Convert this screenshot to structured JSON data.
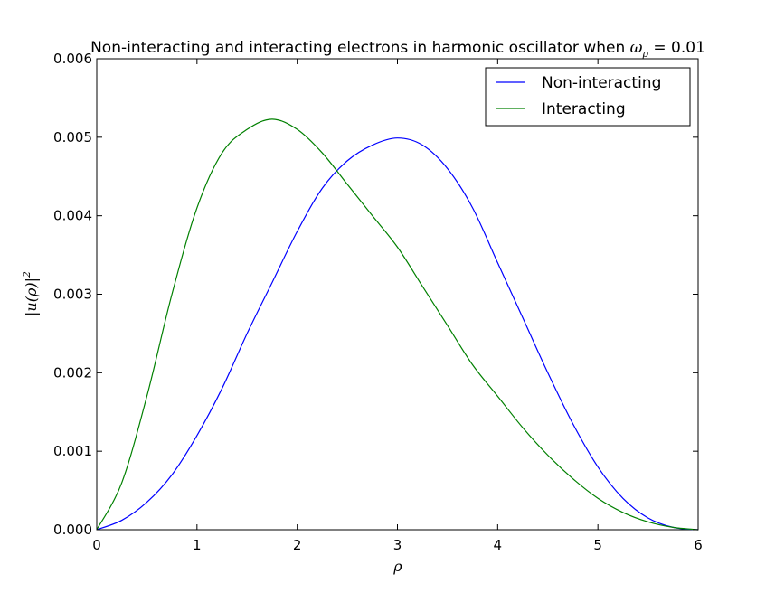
{
  "chart_data": {
    "type": "line",
    "title": "Non-interacting and interacting electrons in harmonic oscillator when ωρ = 0.01",
    "title_main": "Non-interacting and interacting electrons in harmonic oscillator when ",
    "title_omega": "ω",
    "title_omega_sub": "ρ",
    "title_tail": " = 0.01",
    "xlabel": "ρ",
    "ylabel": "|u(ρ)|²",
    "ylabel_main": "|u(ρ)|",
    "ylabel_sup": "2",
    "xlim": [
      0,
      6
    ],
    "ylim": [
      0,
      0.006
    ],
    "x_ticks": [
      0,
      1,
      2,
      3,
      4,
      5,
      6
    ],
    "x_tick_labels": [
      "0",
      "1",
      "2",
      "3",
      "4",
      "5",
      "6"
    ],
    "y_ticks": [
      0,
      0.001,
      0.002,
      0.003,
      0.004,
      0.005,
      0.006
    ],
    "y_tick_labels": [
      "0.000",
      "0.001",
      "0.002",
      "0.003",
      "0.004",
      "0.005",
      "0.006"
    ],
    "legend_position": "top-right",
    "grid": false,
    "x": [
      0,
      0.25,
      0.5,
      0.75,
      1.0,
      1.25,
      1.5,
      1.75,
      2.0,
      2.25,
      2.5,
      2.75,
      3.0,
      3.25,
      3.5,
      3.75,
      4.0,
      4.25,
      4.5,
      4.75,
      5.0,
      5.25,
      5.5,
      5.75,
      6.0
    ],
    "series": [
      {
        "name": "Non-interacting",
        "color": "#0000ff",
        "values": [
          0,
          0.00012,
          0.00035,
          0.0007,
          0.0012,
          0.0018,
          0.0025,
          0.00315,
          0.0038,
          0.00435,
          0.0047,
          0.0049,
          0.00499,
          0.0049,
          0.0046,
          0.0041,
          0.0034,
          0.0027,
          0.002,
          0.00135,
          0.0008,
          0.0004,
          0.00015,
          3e-05,
          0
        ]
      },
      {
        "name": "Interacting",
        "color": "#008000",
        "values": [
          0,
          0.0006,
          0.0017,
          0.003,
          0.0041,
          0.0048,
          0.0051,
          0.00523,
          0.0051,
          0.0048,
          0.0044,
          0.004,
          0.0036,
          0.0031,
          0.0026,
          0.0021,
          0.0017,
          0.0013,
          0.00095,
          0.00065,
          0.0004,
          0.00022,
          0.0001,
          3e-05,
          0
        ]
      }
    ]
  }
}
